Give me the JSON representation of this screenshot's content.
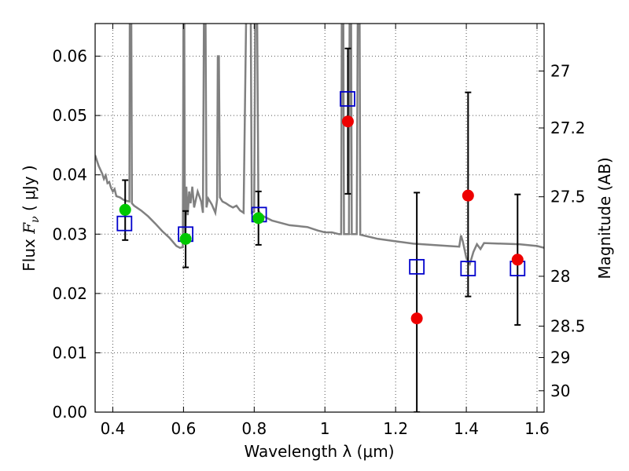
{
  "chart_data": {
    "type": "scatter",
    "xlabel": "Wavelength  λ (μm)",
    "ylabel_left_prefix": "Flux  ",
    "ylabel_left_symbol": "F",
    "ylabel_left_subscript": "ν",
    "ylabel_left_suffix": "  ( μJy )",
    "ylabel_right": "Magnitude (AB)",
    "xlim": [
      0.35,
      1.62
    ],
    "ylim": [
      0.0,
      0.0655
    ],
    "grid": true,
    "x_ticks": [
      0.4,
      0.6,
      0.8,
      1.0,
      1.2,
      1.4,
      1.6
    ],
    "x_tick_labels": [
      "0.4",
      "0.6",
      "0.8",
      "1",
      "1.2",
      "1.4",
      "1.6"
    ],
    "y_ticks": [
      0.0,
      0.01,
      0.02,
      0.03,
      0.04,
      0.05,
      0.06
    ],
    "y_tick_labels": [
      "0.00",
      "0.01",
      "0.02",
      "0.03",
      "0.04",
      "0.05",
      "0.06"
    ],
    "right_ticks": [
      {
        "label": "27",
        "flux": 0.0575
      },
      {
        "label": "27.2",
        "flux": 0.0479
      },
      {
        "label": "27.5",
        "flux": 0.0363
      },
      {
        "label": "28",
        "flux": 0.0229
      },
      {
        "label": "28.5",
        "flux": 0.0145
      },
      {
        "label": "29",
        "flux": 0.0092
      },
      {
        "label": "30",
        "flux": 0.0036
      }
    ],
    "colors": {
      "model": "#808080",
      "green": "#00c800",
      "red": "#ee0000",
      "blue": "#0000cc",
      "errorbar": "#000000",
      "grid": "#555555"
    },
    "model_spectrum": [
      [
        0.35,
        0.0433
      ],
      [
        0.36,
        0.0415
      ],
      [
        0.37,
        0.0402
      ],
      [
        0.375,
        0.0393
      ],
      [
        0.38,
        0.0399
      ],
      [
        0.385,
        0.0386
      ],
      [
        0.39,
        0.0388
      ],
      [
        0.395,
        0.0378
      ],
      [
        0.4,
        0.0372
      ],
      [
        0.405,
        0.0376
      ],
      [
        0.41,
        0.0364
      ],
      [
        0.42,
        0.0362
      ],
      [
        0.43,
        0.0358
      ],
      [
        0.44,
        0.0356
      ],
      [
        0.447,
        0.0355
      ],
      [
        0.448,
        0.07
      ],
      [
        0.452,
        0.07
      ],
      [
        0.454,
        0.0352
      ],
      [
        0.46,
        0.0348
      ],
      [
        0.48,
        0.034
      ],
      [
        0.5,
        0.033
      ],
      [
        0.52,
        0.0318
      ],
      [
        0.54,
        0.0305
      ],
      [
        0.56,
        0.0294
      ],
      [
        0.58,
        0.028
      ],
      [
        0.59,
        0.0277
      ],
      [
        0.598,
        0.0278
      ],
      [
        0.6,
        0.07
      ],
      [
        0.602,
        0.07
      ],
      [
        0.604,
        0.0282
      ],
      [
        0.608,
        0.038
      ],
      [
        0.612,
        0.0332
      ],
      [
        0.616,
        0.0372
      ],
      [
        0.62,
        0.0352
      ],
      [
        0.625,
        0.038
      ],
      [
        0.63,
        0.0345
      ],
      [
        0.64,
        0.0372
      ],
      [
        0.65,
        0.0355
      ],
      [
        0.655,
        0.0336
      ],
      [
        0.658,
        0.07
      ],
      [
        0.662,
        0.07
      ],
      [
        0.665,
        0.0345
      ],
      [
        0.67,
        0.036
      ],
      [
        0.68,
        0.035
      ],
      [
        0.69,
        0.0336
      ],
      [
        0.695,
        0.0358
      ],
      [
        0.697,
        0.06
      ],
      [
        0.7,
        0.06
      ],
      [
        0.703,
        0.0362
      ],
      [
        0.71,
        0.0355
      ],
      [
        0.72,
        0.0352
      ],
      [
        0.73,
        0.0348
      ],
      [
        0.74,
        0.0345
      ],
      [
        0.75,
        0.0348
      ],
      [
        0.76,
        0.034
      ],
      [
        0.77,
        0.0336
      ],
      [
        0.778,
        0.07
      ],
      [
        0.782,
        0.07
      ],
      [
        0.786,
        0.07
      ],
      [
        0.79,
        0.07
      ],
      [
        0.793,
        0.0336
      ],
      [
        0.8,
        0.0338
      ],
      [
        0.803,
        0.07
      ],
      [
        0.808,
        0.07
      ],
      [
        0.812,
        0.034
      ],
      [
        0.82,
        0.0332
      ],
      [
        0.85,
        0.0323
      ],
      [
        0.9,
        0.0315
      ],
      [
        0.95,
        0.0312
      ],
      [
        0.98,
        0.0306
      ],
      [
        1.0,
        0.0303
      ],
      [
        1.02,
        0.0303
      ],
      [
        1.04,
        0.03
      ],
      [
        1.046,
        0.03
      ],
      [
        1.048,
        0.07
      ],
      [
        1.052,
        0.07
      ],
      [
        1.054,
        0.03
      ],
      [
        1.06,
        0.03
      ],
      [
        1.068,
        0.03
      ],
      [
        1.07,
        0.07
      ],
      [
        1.074,
        0.07
      ],
      [
        1.076,
        0.03
      ],
      [
        1.09,
        0.03
      ],
      [
        1.093,
        0.07
      ],
      [
        1.098,
        0.07
      ],
      [
        1.1,
        0.0299
      ],
      [
        1.15,
        0.0292
      ],
      [
        1.2,
        0.0288
      ],
      [
        1.25,
        0.0284
      ],
      [
        1.3,
        0.0282
      ],
      [
        1.35,
        0.028
      ],
      [
        1.38,
        0.0279
      ],
      [
        1.385,
        0.0298
      ],
      [
        1.39,
        0.0288
      ],
      [
        1.4,
        0.026
      ],
      [
        1.41,
        0.025
      ],
      [
        1.42,
        0.027
      ],
      [
        1.43,
        0.0283
      ],
      [
        1.44,
        0.0275
      ],
      [
        1.45,
        0.0285
      ],
      [
        1.5,
        0.0284
      ],
      [
        1.55,
        0.0283
      ],
      [
        1.6,
        0.028
      ],
      [
        1.62,
        0.0277
      ]
    ],
    "series": [
      {
        "marker": "square",
        "color_key": "blue",
        "points": [
          {
            "x": 0.433,
            "y": 0.0318
          },
          {
            "x": 0.606,
            "y": 0.03
          },
          {
            "x": 0.814,
            "y": 0.0333
          },
          {
            "x": 1.064,
            "y": 0.0528
          },
          {
            "x": 1.26,
            "y": 0.0245
          },
          {
            "x": 1.405,
            "y": 0.0242
          },
          {
            "x": 1.545,
            "y": 0.0242
          }
        ]
      },
      {
        "marker": "circle",
        "color_key": "green",
        "points": [
          {
            "x": 0.435,
            "y": 0.0341,
            "err_lo": 0.0051,
            "err_hi": 0.005
          },
          {
            "x": 0.606,
            "y": 0.0292,
            "err_lo": 0.0048,
            "err_hi": 0.0047
          },
          {
            "x": 0.812,
            "y": 0.0327,
            "err_lo": 0.0045,
            "err_hi": 0.0045
          }
        ]
      },
      {
        "marker": "circle",
        "color_key": "red",
        "points": [
          {
            "x": 1.065,
            "y": 0.049,
            "err_lo": 0.0122,
            "err_hi": 0.0123
          },
          {
            "x": 1.26,
            "y": 0.0158,
            "err_lo": 0.0158,
            "err_hi": 0.0212
          },
          {
            "x": 1.405,
            "y": 0.0365,
            "err_lo": 0.017,
            "err_hi": 0.0174
          },
          {
            "x": 1.545,
            "y": 0.0257,
            "err_lo": 0.011,
            "err_hi": 0.011
          }
        ]
      }
    ]
  }
}
